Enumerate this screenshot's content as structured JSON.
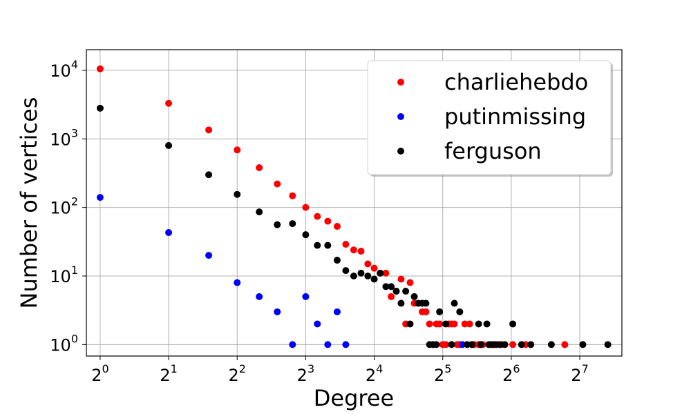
{
  "chart_data": {
    "type": "scatter",
    "title": "",
    "xlabel": "Degree",
    "ylabel": "Number of vertices",
    "xscale": "log2",
    "yscale": "log10",
    "xlim": [
      0.87,
      196
    ],
    "ylim": [
      0.68,
      20000
    ],
    "grid": true,
    "legend_position": "top-right",
    "x_ticks": [
      {
        "value": 1,
        "base": "2",
        "exp": "0"
      },
      {
        "value": 2,
        "base": "2",
        "exp": "1"
      },
      {
        "value": 4,
        "base": "2",
        "exp": "2"
      },
      {
        "value": 8,
        "base": "2",
        "exp": "3"
      },
      {
        "value": 16,
        "base": "2",
        "exp": "4"
      },
      {
        "value": 32,
        "base": "2",
        "exp": "5"
      },
      {
        "value": 64,
        "base": "2",
        "exp": "6"
      },
      {
        "value": 128,
        "base": "2",
        "exp": "7"
      }
    ],
    "y_ticks": [
      {
        "value": 1,
        "base": "10",
        "exp": "0"
      },
      {
        "value": 10,
        "base": "10",
        "exp": "1"
      },
      {
        "value": 100,
        "base": "10",
        "exp": "2"
      },
      {
        "value": 1000,
        "base": "10",
        "exp": "3"
      },
      {
        "value": 10000,
        "base": "10",
        "exp": "4"
      }
    ],
    "series": [
      {
        "name": "charliehebdo",
        "color": "#ff0000",
        "points": [
          [
            1,
            10500
          ],
          [
            2,
            3300
          ],
          [
            3,
            1350
          ],
          [
            4,
            690
          ],
          [
            5,
            380
          ],
          [
            6,
            220
          ],
          [
            7,
            148
          ],
          [
            8,
            100
          ],
          [
            9,
            74
          ],
          [
            10,
            63
          ],
          [
            11,
            53
          ],
          [
            12,
            29
          ],
          [
            13,
            24
          ],
          [
            14,
            23
          ],
          [
            15,
            15
          ],
          [
            16,
            13
          ],
          [
            17,
            11
          ],
          [
            18,
            11
          ],
          [
            19,
            5
          ],
          [
            20,
            6
          ],
          [
            21,
            9
          ],
          [
            22,
            2
          ],
          [
            23,
            8
          ],
          [
            24,
            4
          ],
          [
            26,
            3
          ],
          [
            27,
            3
          ],
          [
            28,
            2
          ],
          [
            29,
            1
          ],
          [
            30,
            2
          ],
          [
            31,
            2
          ],
          [
            32,
            1
          ],
          [
            33,
            1
          ],
          [
            34,
            2
          ],
          [
            35,
            2
          ],
          [
            36,
            2
          ],
          [
            37,
            1
          ],
          [
            38,
            1
          ],
          [
            40,
            2
          ],
          [
            42,
            2
          ],
          [
            43,
            1
          ],
          [
            44,
            1
          ],
          [
            46,
            1
          ],
          [
            47,
            1
          ],
          [
            48,
            1
          ],
          [
            52,
            1
          ],
          [
            54,
            1
          ],
          [
            58,
            1
          ],
          [
            65,
            1
          ],
          [
            74,
            1
          ],
          [
            110,
            1
          ]
        ]
      },
      {
        "name": "putinmissing",
        "color": "#0000ff",
        "points": [
          [
            1,
            140
          ],
          [
            2,
            43
          ],
          [
            3,
            20
          ],
          [
            4,
            8
          ],
          [
            5,
            5
          ],
          [
            6,
            3
          ],
          [
            7,
            1
          ],
          [
            8,
            5
          ],
          [
            9,
            2
          ],
          [
            10,
            1
          ],
          [
            11,
            3
          ],
          [
            12,
            1
          ],
          [
            39,
            1
          ]
        ]
      },
      {
        "name": "ferguson",
        "color": "#000000",
        "points": [
          [
            1,
            2800
          ],
          [
            2,
            800
          ],
          [
            3,
            300
          ],
          [
            4,
            155
          ],
          [
            5,
            86
          ],
          [
            6,
            56
          ],
          [
            7,
            58
          ],
          [
            8,
            40
          ],
          [
            9,
            28
          ],
          [
            10,
            28
          ],
          [
            11,
            17
          ],
          [
            12,
            12
          ],
          [
            13,
            10
          ],
          [
            14,
            11
          ],
          [
            15,
            10
          ],
          [
            16,
            9
          ],
          [
            17,
            11
          ],
          [
            18,
            7
          ],
          [
            19,
            7
          ],
          [
            20,
            6
          ],
          [
            21,
            4
          ],
          [
            22,
            6
          ],
          [
            23,
            2
          ],
          [
            24,
            5
          ],
          [
            25,
            4
          ],
          [
            26,
            4
          ],
          [
            27,
            4
          ],
          [
            28,
            1
          ],
          [
            29,
            1
          ],
          [
            30,
            1
          ],
          [
            31,
            3
          ],
          [
            33,
            2
          ],
          [
            35,
            1
          ],
          [
            36,
            4
          ],
          [
            38,
            3
          ],
          [
            41,
            1
          ],
          [
            43,
            1
          ],
          [
            46,
            2
          ],
          [
            47,
            1
          ],
          [
            50,
            2
          ],
          [
            51,
            1
          ],
          [
            53,
            1
          ],
          [
            55,
            1
          ],
          [
            57,
            1
          ],
          [
            60,
            1
          ],
          [
            65,
            2
          ],
          [
            71,
            1
          ],
          [
            78,
            1
          ],
          [
            96,
            1
          ],
          [
            132,
            1
          ],
          [
            170,
            1
          ]
        ]
      }
    ]
  }
}
